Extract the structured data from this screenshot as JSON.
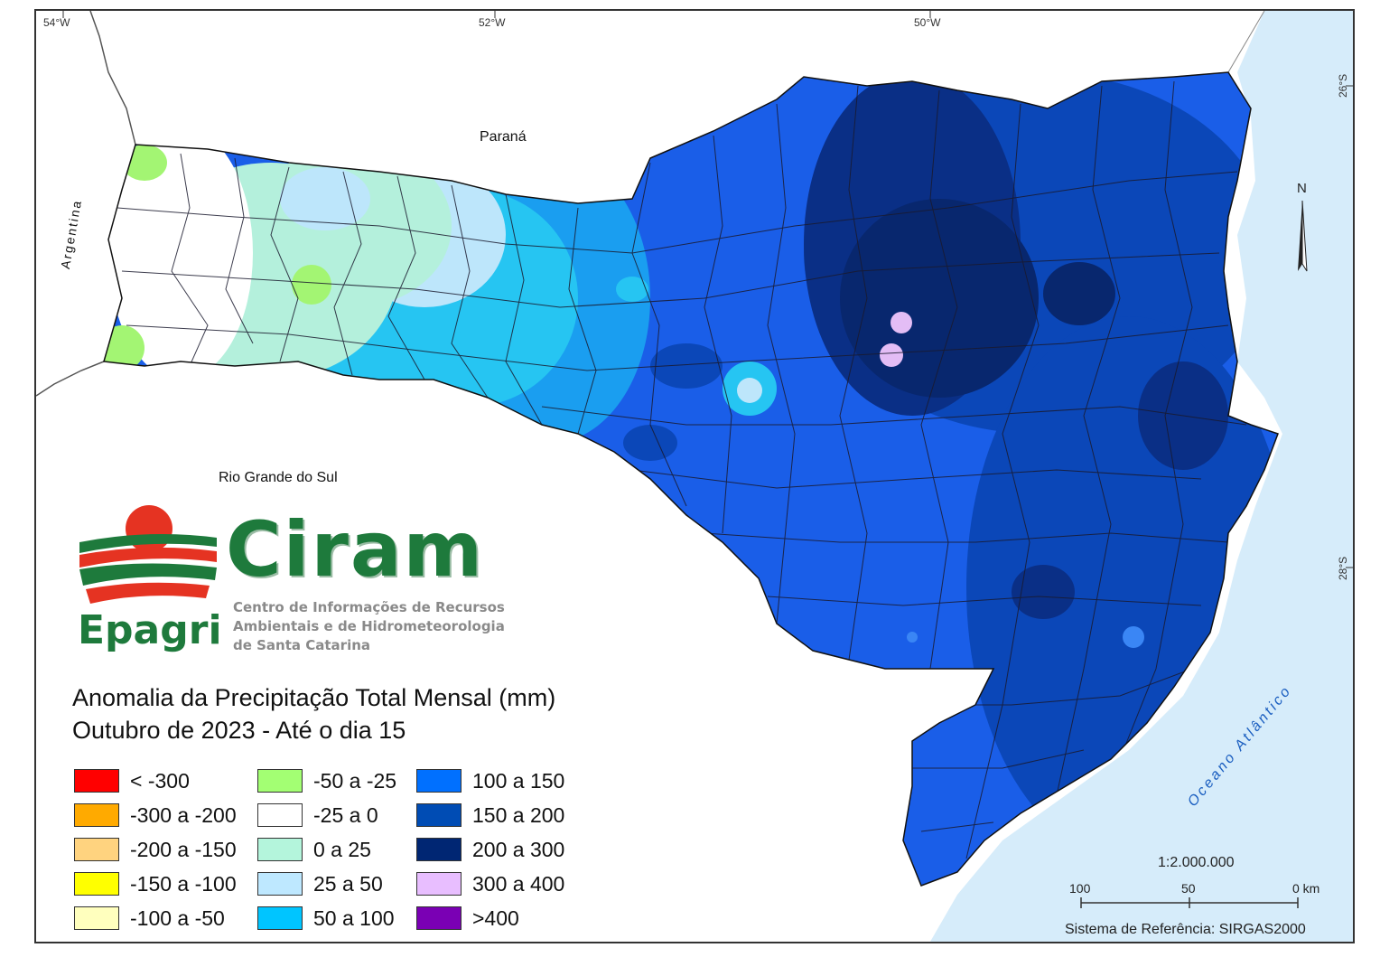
{
  "map": {
    "title_line1": "Anomalia da Precipitação Total Mensal (mm)",
    "title_line2": "Outubro de 2023 - Até o dia 15",
    "scale": "1:2.000.000",
    "scale_ticks": [
      "100",
      "50",
      "0 km"
    ],
    "reference_system": "Sistema de Referência: SIRGAS2000",
    "north_label": "N",
    "longitudes": [
      "54°W",
      "52°W",
      "50°W"
    ],
    "latitudes": [
      "26°S",
      "28°S"
    ],
    "regions": {
      "parana": "Paraná",
      "argentina": "Argentina",
      "rio_grande_do_sul": "Rio Grande do Sul",
      "ocean": "Oceano Atlântico"
    }
  },
  "logo": {
    "name": "Ciram",
    "org": "Epagri",
    "subtitle_line1": "Centro de Informações de Recursos",
    "subtitle_line2": "Ambientais e de Hidrometeorologia",
    "subtitle_line3": "de Santa Catarina"
  },
  "legend": [
    {
      "label": "< -300",
      "color": "#ff0000"
    },
    {
      "label": "-300 a -200",
      "color": "#ffaa00"
    },
    {
      "label": "-200 a -150",
      "color": "#ffd37f"
    },
    {
      "label": "-150 a -100",
      "color": "#ffff00"
    },
    {
      "label": "-100 a -50",
      "color": "#ffffbe"
    },
    {
      "label": "-50 a -25",
      "color": "#a3ff73"
    },
    {
      "label": "-25 a 0",
      "color": "#ffffff"
    },
    {
      "label": "0 a 25",
      "color": "#b4f5dc"
    },
    {
      "label": "25 a 50",
      "color": "#bee8ff"
    },
    {
      "label": "50 a 100",
      "color": "#00c5ff"
    },
    {
      "label": "100 a 150",
      "color": "#0070ff"
    },
    {
      "label": "150 a 200",
      "color": "#004cb4"
    },
    {
      "label": "200 a 300",
      "color": "#002673"
    },
    {
      "label": "300 a 400",
      "color": "#e8beff"
    },
    {
      "label": ">400",
      "color": "#7a00b4"
    }
  ]
}
